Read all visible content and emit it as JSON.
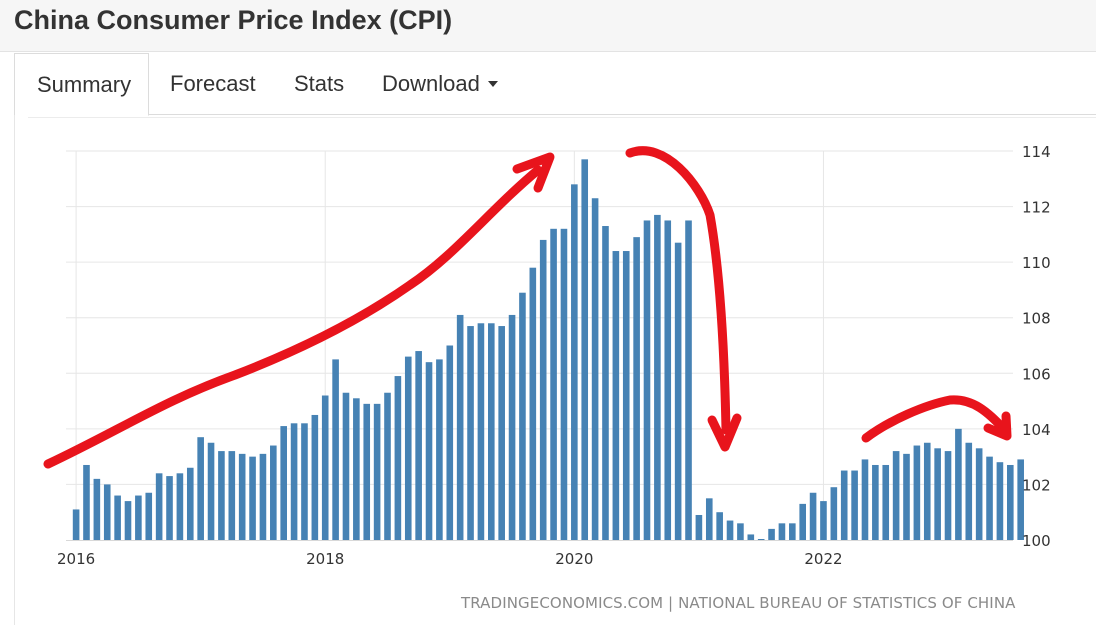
{
  "header": {
    "title": "China Consumer Price Index (CPI)"
  },
  "tabs": [
    {
      "label": "Summary",
      "active": true
    },
    {
      "label": "Forecast",
      "active": false
    },
    {
      "label": "Stats",
      "active": false
    },
    {
      "label": "Download",
      "active": false,
      "dropdown": true
    }
  ],
  "footer": {
    "source_text": "TRADINGECONOMICS.COM | NATIONAL BUREAU OF STATISTICS OF CHINA"
  },
  "colors": {
    "bar": "#4682b4",
    "annotation": "#e8141c",
    "grid": "#e6e6e6"
  },
  "chart_data": {
    "type": "bar",
    "title": "",
    "xlabel": "",
    "ylabel": "",
    "x_start": "2016-01",
    "frequency": "monthly",
    "x_ticks": [
      "2016",
      "2018",
      "2020",
      "2022"
    ],
    "y_ticks": [
      100,
      102,
      104,
      106,
      108,
      110,
      112,
      114
    ],
    "ylim": [
      100,
      114
    ],
    "y_axis_position": "right",
    "grid": true,
    "series": [
      {
        "values": [
          101.1,
          102.7,
          102.2,
          102.0,
          101.6,
          101.4,
          101.6,
          101.7,
          102.4,
          102.3,
          102.4,
          102.6,
          103.7,
          103.5,
          103.2,
          103.2,
          103.1,
          103.0,
          103.1,
          103.4,
          104.1,
          104.2,
          104.2,
          104.5,
          105.2,
          106.5,
          105.3,
          105.1,
          104.9,
          104.9,
          105.3,
          105.9,
          106.6,
          106.8,
          106.4,
          106.5,
          107.0,
          108.1,
          107.7,
          107.8,
          107.8,
          107.7,
          108.1,
          108.9,
          109.8,
          110.8,
          111.2,
          111.2,
          112.8,
          113.7,
          112.3,
          111.3,
          110.4,
          110.4,
          110.9,
          111.5,
          111.7,
          111.5,
          110.7,
          111.5,
          100.9,
          101.5,
          101.0,
          100.7,
          100.6,
          100.2,
          100.0,
          100.4,
          100.6,
          100.6,
          101.3,
          101.7,
          101.4,
          101.9,
          102.5,
          102.5,
          102.9,
          102.7,
          102.7,
          103.2,
          103.1,
          103.4,
          103.5,
          103.3,
          103.2,
          104.0,
          103.5,
          103.3,
          103.0,
          102.8,
          102.7,
          102.9
        ]
      }
    ]
  }
}
